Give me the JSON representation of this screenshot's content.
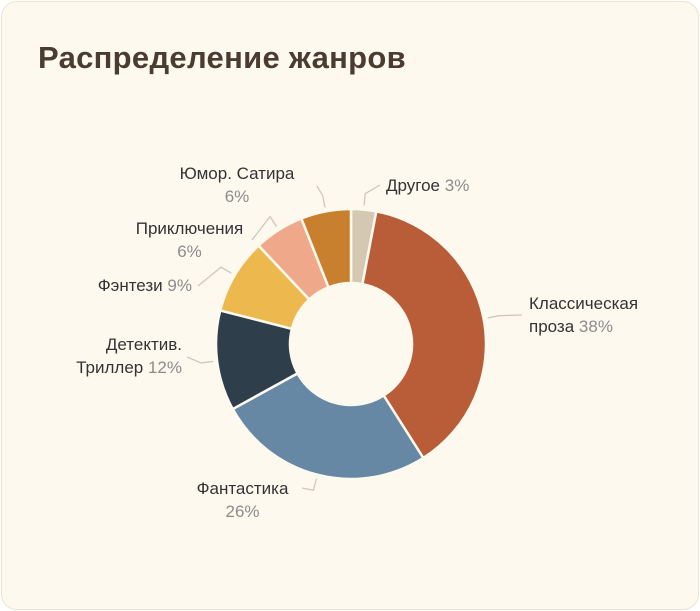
{
  "chart_data": {
    "type": "donut",
    "title": "Распределение жанров",
    "categories": [
      "Другое",
      "Классическая проза",
      "Фантастика",
      "Детектив. Триллер",
      "Фэнтези",
      "Приключения",
      "Юмор. Сатира"
    ],
    "values": [
      3,
      38,
      26,
      12,
      9,
      6,
      6
    ],
    "value_labels": [
      "3%",
      "38%",
      "26%",
      "12%",
      "9%",
      "6%",
      "6%"
    ],
    "colors": [
      "#d4c8b2",
      "#b95c38",
      "#6788a4",
      "#2e3e4b",
      "#edb94f",
      "#efa98a",
      "#c8802f"
    ]
  }
}
